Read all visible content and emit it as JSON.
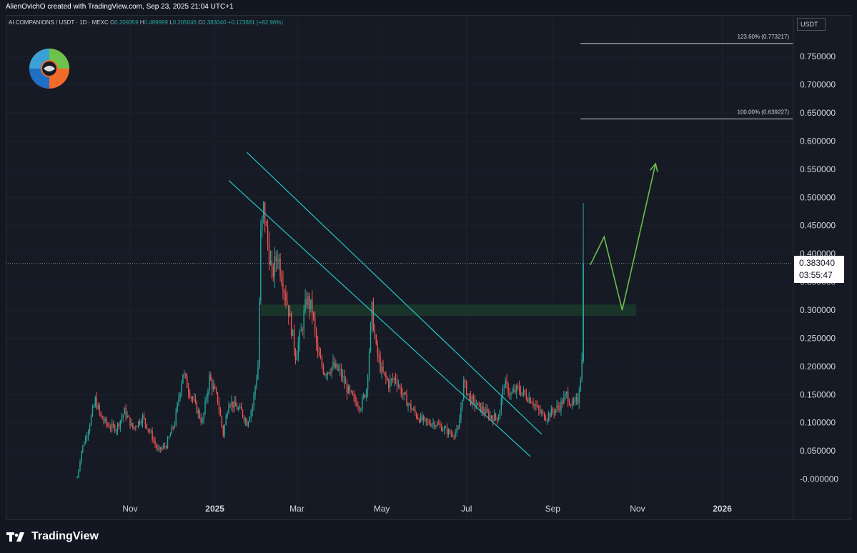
{
  "header": {
    "credit": "AlienOvichO created with TradingView.com, Sep 23, 2025 21:04 UTC+1"
  },
  "legend": {
    "symbol": "AI COMPANIONS / USDT · 1D · MEXC",
    "o_label": "O",
    "o_value": "0.209359",
    "h_label": "H",
    "h_value": "0.489999",
    "l_label": "L",
    "l_value": "0.205046",
    "c_label": "C",
    "c_value": "0.383040",
    "change": "+0.173681 (+82.96%)"
  },
  "currency": "USDT",
  "price_label": {
    "price": "0.383040",
    "countdown": "03:55:47"
  },
  "brand": {
    "name": "TradingView"
  },
  "chart_data": {
    "type": "candlestick",
    "title": "AI COMPANIONS / USDT · 1D · MEXC",
    "ylim": [
      -0.02,
      0.8
    ],
    "y_ticks": [
      {
        "value": 0.75,
        "label": "0.750000"
      },
      {
        "value": 0.7,
        "label": "0.700000"
      },
      {
        "value": 0.65,
        "label": "0.650000"
      },
      {
        "value": 0.6,
        "label": "0.600000"
      },
      {
        "value": 0.55,
        "label": "0.550000"
      },
      {
        "value": 0.5,
        "label": "0.500000"
      },
      {
        "value": 0.45,
        "label": "0.450000"
      },
      {
        "value": 0.4,
        "label": "0.400000"
      },
      {
        "value": 0.35,
        "label": "0.350000"
      },
      {
        "value": 0.3,
        "label": "0.300000"
      },
      {
        "value": 0.25,
        "label": "0.250000"
      },
      {
        "value": 0.2,
        "label": "0.200000"
      },
      {
        "value": 0.15,
        "label": "0.150000"
      },
      {
        "value": 0.1,
        "label": "0.100000"
      },
      {
        "value": 0.05,
        "label": "0.050000"
      },
      {
        "value": 0.0,
        "label": "-0.000000"
      }
    ],
    "x_ticks": [
      {
        "date": "2024-11-01",
        "label": "Nov"
      },
      {
        "date": "2025-01-01",
        "label": "2025"
      },
      {
        "date": "2025-03-01",
        "label": "Mar"
      },
      {
        "date": "2025-05-01",
        "label": "May"
      },
      {
        "date": "2025-07-01",
        "label": "Jul"
      },
      {
        "date": "2025-09-01",
        "label": "Sep"
      },
      {
        "date": "2025-11-01",
        "label": "Nov"
      },
      {
        "date": "2026-01-01",
        "label": "2026"
      }
    ],
    "up_color": "#26a69a",
    "down_color": "#ef5350",
    "close_path": [
      {
        "date": "2024-09-24",
        "close": 0.002
      },
      {
        "date": "2024-09-27",
        "close": 0.05
      },
      {
        "date": "2024-10-02",
        "close": 0.09
      },
      {
        "date": "2024-10-07",
        "close": 0.14
      },
      {
        "date": "2024-10-11",
        "close": 0.11
      },
      {
        "date": "2024-10-16",
        "close": 0.095
      },
      {
        "date": "2024-10-22",
        "close": 0.09
      },
      {
        "date": "2024-10-28",
        "close": 0.12
      },
      {
        "date": "2024-11-03",
        "close": 0.09
      },
      {
        "date": "2024-11-10",
        "close": 0.11
      },
      {
        "date": "2024-11-16",
        "close": 0.08
      },
      {
        "date": "2024-11-21",
        "close": 0.05
      },
      {
        "date": "2024-11-27",
        "close": 0.06
      },
      {
        "date": "2024-12-03",
        "close": 0.1
      },
      {
        "date": "2024-12-09",
        "close": 0.19
      },
      {
        "date": "2024-12-13",
        "close": 0.16
      },
      {
        "date": "2024-12-18",
        "close": 0.13
      },
      {
        "date": "2024-12-23",
        "close": 0.1
      },
      {
        "date": "2024-12-28",
        "close": 0.18
      },
      {
        "date": "2025-01-03",
        "close": 0.14
      },
      {
        "date": "2025-01-07",
        "close": 0.08
      },
      {
        "date": "2025-01-11",
        "close": 0.14
      },
      {
        "date": "2025-01-15",
        "close": 0.13
      },
      {
        "date": "2025-01-20",
        "close": 0.12
      },
      {
        "date": "2025-01-24",
        "close": 0.1
      },
      {
        "date": "2025-01-28",
        "close": 0.13
      },
      {
        "date": "2025-02-01",
        "close": 0.2
      },
      {
        "date": "2025-02-03",
        "close": 0.43
      },
      {
        "date": "2025-02-05",
        "close": 0.48
      },
      {
        "date": "2025-02-08",
        "close": 0.42
      },
      {
        "date": "2025-02-11",
        "close": 0.36
      },
      {
        "date": "2025-02-15",
        "close": 0.4
      },
      {
        "date": "2025-02-19",
        "close": 0.35
      },
      {
        "date": "2025-02-23",
        "close": 0.3
      },
      {
        "date": "2025-02-28",
        "close": 0.22
      },
      {
        "date": "2025-03-04",
        "close": 0.26
      },
      {
        "date": "2025-03-08",
        "close": 0.32
      },
      {
        "date": "2025-03-12",
        "close": 0.3
      },
      {
        "date": "2025-03-16",
        "close": 0.22
      },
      {
        "date": "2025-03-21",
        "close": 0.19
      },
      {
        "date": "2025-03-27",
        "close": 0.2
      },
      {
        "date": "2025-04-01",
        "close": 0.19
      },
      {
        "date": "2025-04-06",
        "close": 0.16
      },
      {
        "date": "2025-04-11",
        "close": 0.14
      },
      {
        "date": "2025-04-16",
        "close": 0.13
      },
      {
        "date": "2025-04-20",
        "close": 0.16
      },
      {
        "date": "2025-04-24",
        "close": 0.3
      },
      {
        "date": "2025-04-27",
        "close": 0.23
      },
      {
        "date": "2025-05-01",
        "close": 0.19
      },
      {
        "date": "2025-05-06",
        "close": 0.17
      },
      {
        "date": "2025-05-11",
        "close": 0.18
      },
      {
        "date": "2025-05-16",
        "close": 0.15
      },
      {
        "date": "2025-05-21",
        "close": 0.13
      },
      {
        "date": "2025-05-27",
        "close": 0.11
      },
      {
        "date": "2025-06-02",
        "close": 0.1
      },
      {
        "date": "2025-06-08",
        "close": 0.1
      },
      {
        "date": "2025-06-14",
        "close": 0.09
      },
      {
        "date": "2025-06-20",
        "close": 0.08
      },
      {
        "date": "2025-06-25",
        "close": 0.085
      },
      {
        "date": "2025-06-29",
        "close": 0.17
      },
      {
        "date": "2025-07-04",
        "close": 0.14
      },
      {
        "date": "2025-07-09",
        "close": 0.13
      },
      {
        "date": "2025-07-14",
        "close": 0.12
      },
      {
        "date": "2025-07-19",
        "close": 0.11
      },
      {
        "date": "2025-07-24",
        "close": 0.11
      },
      {
        "date": "2025-07-28",
        "close": 0.17
      },
      {
        "date": "2025-08-02",
        "close": 0.15
      },
      {
        "date": "2025-08-07",
        "close": 0.16
      },
      {
        "date": "2025-08-12",
        "close": 0.15
      },
      {
        "date": "2025-08-17",
        "close": 0.14
      },
      {
        "date": "2025-08-22",
        "close": 0.12
      },
      {
        "date": "2025-08-27",
        "close": 0.11
      },
      {
        "date": "2025-09-01",
        "close": 0.12
      },
      {
        "date": "2025-09-06",
        "close": 0.13
      },
      {
        "date": "2025-09-11",
        "close": 0.15
      },
      {
        "date": "2025-09-15",
        "close": 0.13
      },
      {
        "date": "2025-09-19",
        "close": 0.14
      },
      {
        "date": "2025-09-22",
        "close": 0.209
      },
      {
        "date": "2025-09-23",
        "close": 0.383
      }
    ],
    "last_candle": {
      "date": "2025-09-23",
      "open": 0.209359,
      "high": 0.489999,
      "low": 0.205046,
      "close": 0.38304
    },
    "current_price": 0.38304,
    "fib_levels": [
      {
        "level": "123.60%",
        "value": 0.773217,
        "label": "123.60% (0.773217)"
      },
      {
        "level": "100.00%",
        "value": 0.639227,
        "label": "100.00% (0.639227)"
      }
    ],
    "support_zone": {
      "from_date": "2025-02-03",
      "to_date": "2025-10-31",
      "low": 0.29,
      "high": 0.31
    },
    "trendlines": [
      {
        "from": {
          "date": "2025-01-24",
          "value": 0.58
        },
        "to": {
          "date": "2025-08-24",
          "value": 0.08
        }
      },
      {
        "from": {
          "date": "2025-01-11",
          "value": 0.53
        },
        "to": {
          "date": "2025-08-16",
          "value": 0.04
        }
      }
    ],
    "projection": [
      {
        "date": "2025-09-28",
        "value": 0.38
      },
      {
        "date": "2025-10-08",
        "value": 0.43
      },
      {
        "date": "2025-10-21",
        "value": 0.3
      },
      {
        "date": "2025-11-14",
        "value": 0.56
      }
    ],
    "colors": {
      "background": "#161a25",
      "grid": "#1e222d",
      "trendline": "#22c7c7",
      "projection": "#6abf4b",
      "zone": "#1b3a2a",
      "fib": "#d1d4dc"
    }
  }
}
